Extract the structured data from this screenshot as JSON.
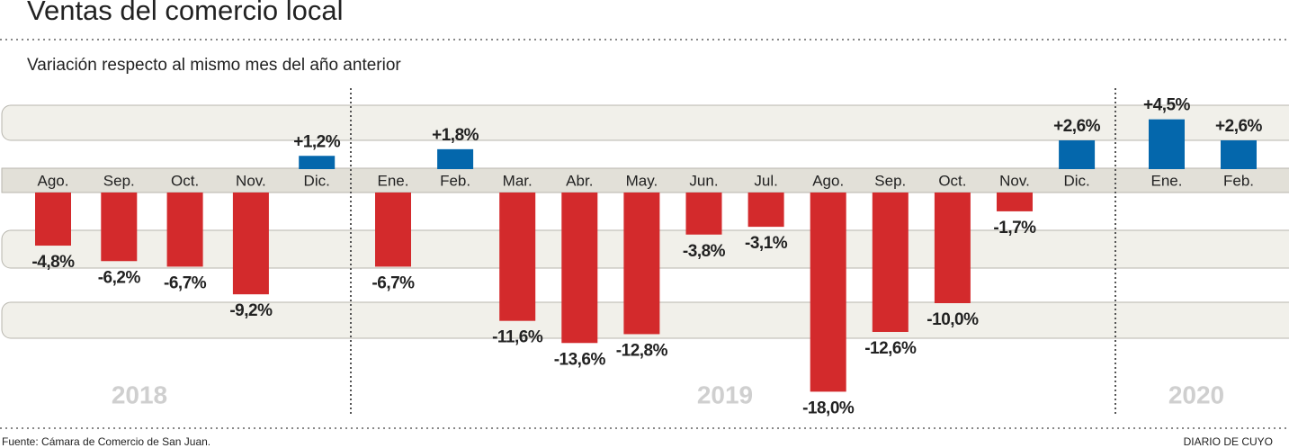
{
  "chart_data": {
    "type": "bar",
    "title": "Ventas del comercio local",
    "subtitle": "Variación respecto al mismo mes del año anterior",
    "source": "Fuente: Cámara de Comercio de San Juan.",
    "brand": "DIARIO DE CUYO",
    "positive_color": "#0467ac",
    "negative_color": "#d32a2c",
    "groups": [
      {
        "label": "2018",
        "categories": [
          "Ago.",
          "Sep.",
          "Oct.",
          "Nov.",
          "Dic."
        ],
        "values": [
          -4.8,
          -6.2,
          -6.7,
          -9.2,
          1.2
        ],
        "value_labels": [
          "-4,8%",
          "-6,2%",
          "-6,7%",
          "-9,2%",
          "+1,2%"
        ]
      },
      {
        "label": "2019",
        "categories": [
          "Ene.",
          "Feb.",
          "Mar.",
          "Abr.",
          "May.",
          "Jun.",
          "Jul.",
          "Ago.",
          "Sep.",
          "Oct.",
          "Nov.",
          "Dic."
        ],
        "values": [
          -6.7,
          1.8,
          -11.6,
          -13.6,
          -12.8,
          -3.8,
          -3.1,
          -18.0,
          -12.6,
          -10.0,
          -1.7,
          2.6
        ],
        "value_labels": [
          "-6,7%",
          "+1,8%",
          "-11,6%",
          "-13,6%",
          "-12,8%",
          "-3,8%",
          "-3,1%",
          "-18,0%",
          "-12,6%",
          "-10,0%",
          "-1,7%",
          "+2,6%"
        ]
      },
      {
        "label": "2020",
        "categories": [
          "Ene.",
          "Feb."
        ],
        "values": [
          4.5,
          2.6
        ],
        "value_labels": [
          "+4,5%",
          "+2,6%"
        ]
      }
    ]
  }
}
